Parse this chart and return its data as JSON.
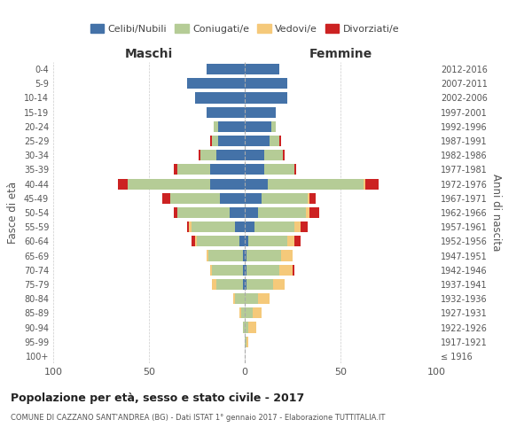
{
  "age_groups": [
    "100+",
    "95-99",
    "90-94",
    "85-89",
    "80-84",
    "75-79",
    "70-74",
    "65-69",
    "60-64",
    "55-59",
    "50-54",
    "45-49",
    "40-44",
    "35-39",
    "30-34",
    "25-29",
    "20-24",
    "15-19",
    "10-14",
    "5-9",
    "0-4"
  ],
  "birth_years": [
    "≤ 1916",
    "1917-1921",
    "1922-1926",
    "1927-1931",
    "1932-1936",
    "1937-1941",
    "1942-1946",
    "1947-1951",
    "1952-1956",
    "1957-1961",
    "1962-1966",
    "1967-1971",
    "1972-1976",
    "1977-1981",
    "1982-1986",
    "1987-1991",
    "1992-1996",
    "1997-2001",
    "2002-2006",
    "2007-2011",
    "2012-2016"
  ],
  "males": {
    "celibi": [
      0,
      0,
      0,
      0,
      0,
      1,
      1,
      1,
      3,
      5,
      8,
      13,
      18,
      18,
      15,
      14,
      14,
      20,
      26,
      30,
      20
    ],
    "coniugati": [
      0,
      0,
      1,
      2,
      5,
      14,
      16,
      18,
      22,
      23,
      27,
      26,
      43,
      17,
      8,
      3,
      2,
      0,
      0,
      0,
      0
    ],
    "vedovi": [
      0,
      0,
      0,
      1,
      1,
      2,
      1,
      1,
      1,
      1,
      0,
      0,
      0,
      0,
      0,
      0,
      0,
      0,
      0,
      0,
      0
    ],
    "divorziati": [
      0,
      0,
      0,
      0,
      0,
      0,
      0,
      0,
      2,
      1,
      2,
      4,
      5,
      2,
      1,
      1,
      0,
      0,
      0,
      0,
      0
    ]
  },
  "females": {
    "nubili": [
      0,
      0,
      0,
      0,
      0,
      1,
      1,
      1,
      2,
      5,
      7,
      9,
      12,
      10,
      10,
      13,
      14,
      16,
      22,
      22,
      18
    ],
    "coniugate": [
      0,
      1,
      2,
      4,
      7,
      14,
      17,
      18,
      20,
      21,
      25,
      24,
      50,
      16,
      10,
      5,
      2,
      0,
      0,
      0,
      0
    ],
    "vedove": [
      0,
      1,
      4,
      5,
      6,
      6,
      7,
      6,
      4,
      3,
      2,
      1,
      1,
      0,
      0,
      0,
      0,
      0,
      0,
      0,
      0
    ],
    "divorziate": [
      0,
      0,
      0,
      0,
      0,
      0,
      1,
      0,
      3,
      4,
      5,
      3,
      7,
      1,
      1,
      1,
      0,
      0,
      0,
      0,
      0
    ]
  },
  "colors": {
    "celibi": "#4472a8",
    "coniugati": "#b5cc96",
    "vedovi": "#f5c97a",
    "divorziati": "#cc2222"
  },
  "title": "Popolazione per età, sesso e stato civile - 2017",
  "subtitle": "COMUNE DI CAZZANO SANT'ANDREA (BG) - Dati ISTAT 1° gennaio 2017 - Elaborazione TUTTITALIA.IT",
  "xlabel_left": "Maschi",
  "xlabel_right": "Femmine",
  "ylabel_left": "Fasce di età",
  "ylabel_right": "Anni di nascita",
  "xlim": 100,
  "legend_labels": [
    "Celibi/Nubili",
    "Coniugati/e",
    "Vedovi/e",
    "Divorziati/e"
  ],
  "background_color": "#ffffff",
  "grid_color": "#cccccc"
}
